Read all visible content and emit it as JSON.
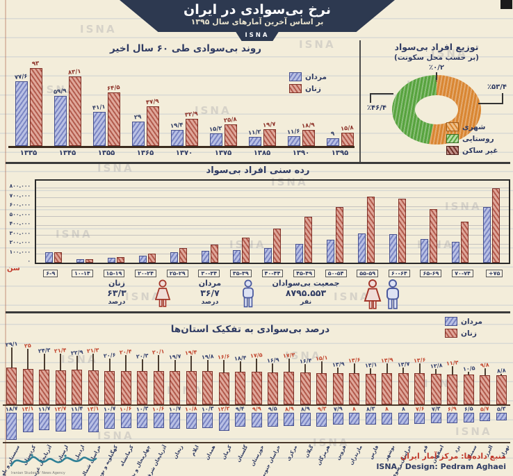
{
  "header": {
    "title": "نرخ بی‌سوادی در ایران",
    "subtitle": "بر اساس آخرین آمارهای سال ۱۳۹۵",
    "badge": "ISNA"
  },
  "watermark": "ISNA",
  "colors": {
    "navy": "#2f3b63",
    "men_blue": "#7b86c3",
    "women_red": "#b25a4c",
    "urban_orange": "#d98632",
    "rural_green": "#57a33e",
    "nonresident_dark": "#703028",
    "accent_red": "#c0392b",
    "banner_navy": "#2d3950"
  },
  "chart_data": [
    {
      "id": "trend",
      "type": "bar",
      "title": "روند بی‌سوادی طی ۶۰ سال اخیر",
      "legend": [
        "مردان",
        "زنان"
      ],
      "categories": [
        "۱۳۳۵",
        "۱۳۴۵",
        "۱۳۵۵",
        "۱۳۶۵",
        "۱۳۷۰",
        "۱۳۷۵",
        "۱۳۸۵",
        "۱۳۹۰",
        "۱۳۹۵"
      ],
      "ylim": [
        0,
        100
      ],
      "series": [
        {
          "name": "مردان",
          "values": [
            77.6,
            59.9,
            41.1,
            29,
            19.4,
            15.2,
            11.2,
            11.6,
            9
          ],
          "labels": [
            "۷۷/۶",
            "۵۹/۹",
            "۴۱/۱",
            "۲۹",
            "۱۹/۴",
            "۱۵/۲",
            "۱۱/۲",
            "۱۱/۶",
            "۹"
          ]
        },
        {
          "name": "زنان",
          "values": [
            93,
            83.1,
            64.5,
            47.9,
            32.9,
            25.8,
            19.7,
            18.9,
            15.8
          ],
          "labels": [
            "۹۳",
            "۸۳/۱",
            "۶۴/۵",
            "۴۷/۹",
            "۳۲/۹",
            "۲۵/۸",
            "۱۹/۷",
            "۱۸/۹",
            "۱۵/۸"
          ]
        }
      ]
    },
    {
      "id": "residence",
      "type": "pie",
      "title": "توزیع افراد بی‌سواد",
      "subtitle": "(بر حسب محل سکونت)",
      "slices": [
        {
          "name": "غیر ساکن",
          "value": 0.2,
          "label": "٪۰/۲",
          "color": "#703028"
        },
        {
          "name": "شهری",
          "value": 53.4,
          "label": "٪۵۳/۴",
          "color": "#d98632"
        },
        {
          "name": "روستایی",
          "value": 46.4,
          "label": "٪۴۶/۴",
          "color": "#57a33e"
        }
      ],
      "legend": [
        "شهری",
        "روستایی",
        "غیر ساکن"
      ]
    },
    {
      "id": "age-groups",
      "type": "bar",
      "title": "رده سنی افراد بی‌سواد",
      "axis_label": "سن",
      "ylim": [
        0,
        800000
      ],
      "y_ticks": [
        "۸۰۰.۰۰۰",
        "۷۰۰.۰۰۰",
        "۶۰۰.۰۰۰",
        "۵۰۰.۰۰۰",
        "۴۰۰.۰۰۰",
        "۳۰۰.۰۰۰",
        "۲۰۰.۰۰۰",
        "۱۰۰.۰۰۰",
        "۰"
      ],
      "categories": [
        "۶-۹",
        "۱۰-۱۴",
        "۱۵-۱۹",
        "۲۰-۲۴",
        "۲۵-۲۹",
        "۳۰-۳۴",
        "۳۵-۳۹",
        "۴۰-۴۴",
        "۴۵-۴۹",
        "۵۰-۵۴",
        "۵۵-۵۹",
        "۶۰-۶۴",
        "۶۵-۶۹",
        "۷۰-۷۴",
        "+۷۵"
      ],
      "series": [
        {
          "name": "مردان",
          "values": [
            110000,
            35000,
            55000,
            78000,
            115000,
            128000,
            135000,
            158000,
            197000,
            245000,
            310000,
            305000,
            255000,
            220000,
            595000
          ]
        },
        {
          "name": "زنان",
          "values": [
            115000,
            40000,
            57000,
            100000,
            158000,
            195000,
            268000,
            360000,
            490000,
            590000,
            705000,
            680000,
            570000,
            435000,
            790000
          ]
        }
      ]
    },
    {
      "id": "provinces",
      "type": "bar",
      "title": "درصد بی‌سوادی به تفکیک استان‌ها",
      "legend": [
        "مردان",
        "زنان"
      ],
      "unit": "percent",
      "provinces": [
        {
          "name": "سیستان و بلوچستان",
          "women": 29.1,
          "women_label": "۲۹/۱",
          "men": 18.7,
          "men_label": "۱۸/۷"
        },
        {
          "name": "کردستان",
          "women": 25,
          "women_label": "۲۵",
          "men": 13.1,
          "men_label": "۱۳/۱"
        },
        {
          "name": "آذربایجان غربی",
          "women": 24.3,
          "women_label": "۲۴/۳",
          "men": 11.7,
          "men_label": "۱۱/۷"
        },
        {
          "name": "لرستان",
          "women": 21.4,
          "women_label": "۲۱/۴",
          "men": 12.7,
          "men_label": "۱۲/۷"
        },
        {
          "name": "اردبیل",
          "women": 22.9,
          "women_label": "۲۲/۹",
          "men": 11.4,
          "men_label": "۱۱/۴"
        },
        {
          "name": "خراسان شمالی",
          "women": 21.3,
          "women_label": "۲۱/۳",
          "men": 13.1,
          "men_label": "۱۳/۱"
        },
        {
          "name": "کهگیلویه و بویراحمد",
          "women": 20.6,
          "women_label": "۲۰/۶",
          "men": 10.7,
          "men_label": "۱۰/۷"
        },
        {
          "name": "کرمانشاه",
          "women": 20.4,
          "women_label": "۲۰/۴",
          "men": 10.6,
          "men_label": "۱۰/۶"
        },
        {
          "name": "چهارمحال و بختیاری",
          "women": 20.3,
          "women_label": "۲۰/۳",
          "men": 10.3,
          "men_label": "۱۰/۳"
        },
        {
          "name": "آذربایجان شرقی",
          "women": 20.1,
          "women_label": "۲۰/۱",
          "men": 10.6,
          "men_label": "۱۰/۶"
        },
        {
          "name": "زنجان",
          "women": 19.7,
          "women_label": "۱۹/۷",
          "men": 10.7,
          "men_label": "۱۰/۷"
        },
        {
          "name": "ایلام",
          "women": 19.4,
          "women_label": "۱۹/۴",
          "men": 10.8,
          "men_label": "۱۰/۸"
        },
        {
          "name": "همدان",
          "women": 19.8,
          "women_label": "۱۹/۸",
          "men": 10.3,
          "men_label": "۱۰/۳"
        },
        {
          "name": "کرمان",
          "women": 16.6,
          "women_label": "۱۶/۶",
          "men": 12.2,
          "men_label": "۱۲/۲"
        },
        {
          "name": "گلستان",
          "women": 18.4,
          "women_label": "۱۸/۴",
          "men": 9.4,
          "men_label": "۹/۴"
        },
        {
          "name": "خوزستان",
          "women": 17.5,
          "women_label": "۱۷/۵",
          "men": 9.9,
          "men_label": "۹/۹"
        },
        {
          "name": "خراسان جنوبی",
          "women": 16.9,
          "women_label": "۱۶/۹",
          "men": 9.5,
          "men_label": "۹/۵"
        },
        {
          "name": "مرکزی",
          "women": 17.3,
          "women_label": "۱۷/۳",
          "men": 8.9,
          "men_label": "۸/۹"
        },
        {
          "name": "گیلان",
          "women": 16.4,
          "women_label": "۱۶/۴",
          "men": 8.9,
          "men_label": "۸/۹"
        },
        {
          "name": "هرمزگان",
          "women": 15.1,
          "women_label": "۱۵/۱",
          "men": 9.3,
          "men_label": "۹/۳"
        },
        {
          "name": "قزوین",
          "women": 13.9,
          "women_label": "۱۳/۹",
          "men": 7.9,
          "men_label": "۷/۹"
        },
        {
          "name": "مازندران",
          "women": 13.6,
          "women_label": "۱۳/۶",
          "men": 8,
          "men_label": "۸"
        },
        {
          "name": "فارس",
          "women": 13.1,
          "women_label": "۱۳/۱",
          "men": 8.3,
          "men_label": "۸/۳"
        },
        {
          "name": "بوشهر",
          "women": 13.9,
          "women_label": "۱۳/۹",
          "men": 8,
          "men_label": "۸"
        },
        {
          "name": "خراسان رضوی",
          "women": 13.7,
          "women_label": "۱۳/۷",
          "men": 8,
          "men_label": "۸"
        },
        {
          "name": "قم",
          "women": 13.6,
          "women_label": "۱۳/۶",
          "men": 7.6,
          "men_label": "۷/۶"
        },
        {
          "name": "اصفهان",
          "women": 12.8,
          "women_label": "۱۲/۸",
          "men": 7.3,
          "men_label": "۷/۳"
        },
        {
          "name": "یزد",
          "women": 11.3,
          "women_label": "۱۱/۳",
          "men": 6.9,
          "men_label": "۶/۹"
        },
        {
          "name": "سمنان",
          "women": 10.5,
          "women_label": "۱۰/۵",
          "men": 6.5,
          "men_label": "۶/۵"
        },
        {
          "name": "البرز",
          "women": 9.8,
          "women_label": "۹/۸",
          "men": 5.7,
          "men_label": "۵/۷"
        },
        {
          "name": "تهران",
          "women": 8.8,
          "women_label": "۸/۸",
          "men": 5.3,
          "men_label": "۵/۳"
        }
      ]
    }
  ],
  "band": {
    "women_label": "زنان",
    "women_value": "۶۳/۳",
    "women_unit": "درصد",
    "men_label": "مردان",
    "men_value": "۳۶/۷",
    "men_unit": "درصد",
    "population_label": "جمعیت بی‌سوادان",
    "population_value": "۸۷۹۵.۵۵۳",
    "population_unit": "نفر"
  },
  "footer": {
    "source": "منبع داده‌ها: مرکز آمار ایران",
    "credit": "ISNA / Design: Pedram Aghaei",
    "logo_caption": "Iranian Students' News Agency"
  }
}
